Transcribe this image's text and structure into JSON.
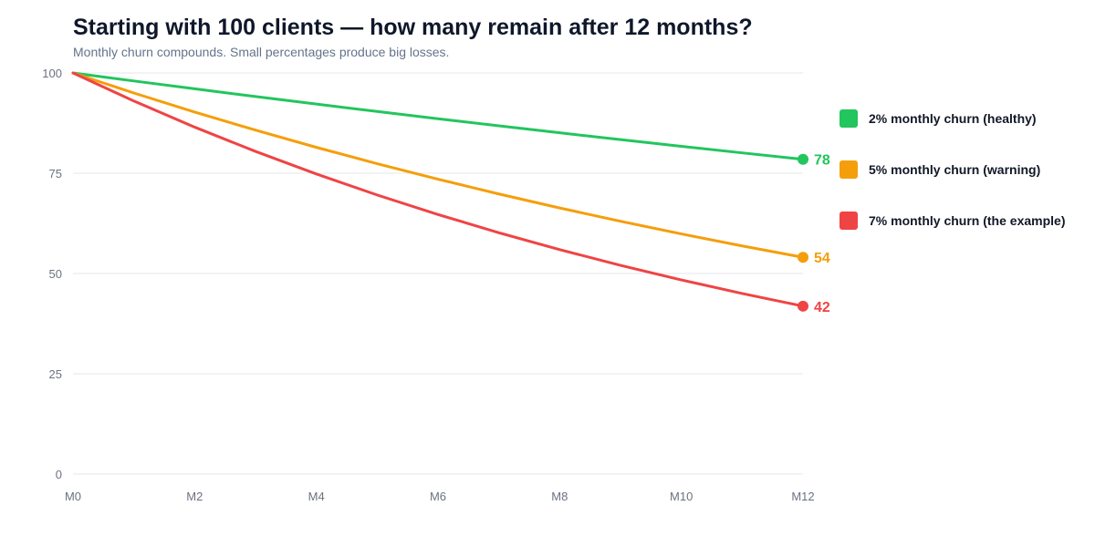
{
  "chart_data": {
    "type": "line",
    "title": "Starting with 100 clients — how many remain after 12 months?",
    "subtitle": "Monthly churn compounds. Small percentages produce big losses.",
    "x": [
      0,
      1,
      2,
      3,
      4,
      5,
      6,
      7,
      8,
      9,
      10,
      11,
      12
    ],
    "x_tick_labels": [
      "M0",
      "M2",
      "M4",
      "M6",
      "M8",
      "M10",
      "M12"
    ],
    "x_tick_values": [
      0,
      2,
      4,
      6,
      8,
      10,
      12
    ],
    "y_tick_labels": [
      "0",
      "25",
      "50",
      "75",
      "100"
    ],
    "y_tick_values": [
      0,
      25,
      50,
      75,
      100
    ],
    "ylim": [
      0,
      100
    ],
    "xlim": [
      0,
      12
    ],
    "grid": true,
    "legend_position": "right",
    "series": [
      {
        "name": "2% monthly churn (healthy)",
        "color": "#22c55e",
        "values": [
          100,
          98,
          96.04,
          94.12,
          92.24,
          90.39,
          88.58,
          86.81,
          85.08,
          83.37,
          81.71,
          80.07,
          78.47
        ],
        "end_label": "78"
      },
      {
        "name": "5% monthly churn (warning)",
        "color": "#f59e0b",
        "values": [
          100,
          95,
          90.25,
          85.74,
          81.45,
          77.38,
          73.51,
          69.83,
          66.34,
          63.02,
          59.87,
          56.88,
          54.04
        ],
        "end_label": "54"
      },
      {
        "name": "7% monthly churn (the example)",
        "color": "#ef4444",
        "values": [
          100,
          93,
          86.49,
          80.44,
          74.81,
          69.57,
          64.7,
          60.17,
          55.96,
          52.04,
          48.4,
          45.01,
          41.86
        ],
        "end_label": "42"
      }
    ]
  }
}
